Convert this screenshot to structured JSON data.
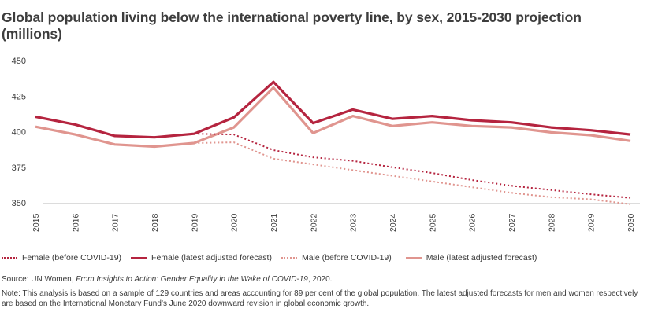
{
  "chart_data": {
    "type": "line",
    "title": "Global population living below the international poverty line, by sex, 2015-2030 projection (millions)",
    "xlabel": "",
    "ylabel": "",
    "ylim": [
      350,
      450
    ],
    "yticks": [
      "450",
      "425",
      "400",
      "375",
      "350"
    ],
    "ytick_values": [
      450,
      425,
      400,
      375,
      350
    ],
    "x": [
      "2015",
      "2016",
      "2017",
      "2018",
      "2019",
      "2020",
      "2021",
      "2022",
      "2023",
      "2024",
      "2025",
      "2026",
      "2027",
      "2028",
      "2029",
      "2030"
    ],
    "grid": false,
    "legend_position": "bottom",
    "series": [
      {
        "name": "Female (before COVID-19)",
        "style": "dotted",
        "color": "#b5243f",
        "values": [
          null,
          null,
          null,
          null,
          398.5,
          398,
          387,
          382,
          379.5,
          375,
          371,
          366,
          362,
          359,
          356,
          353.5
        ]
      },
      {
        "name": "Female (latest adjusted forecast)",
        "style": "solid",
        "color": "#b5243f",
        "values": [
          410.5,
          405,
          397,
          396,
          398.5,
          410,
          435,
          406,
          415.5,
          409,
          411,
          408,
          406.5,
          403,
          401,
          398
        ]
      },
      {
        "name": "Male (before COVID-19)",
        "style": "dotted",
        "color": "#e0958f",
        "values": [
          null,
          null,
          null,
          null,
          392,
          392.5,
          381,
          377,
          373,
          369,
          365,
          361,
          357,
          354,
          352.5,
          349
        ]
      },
      {
        "name": "Male (latest adjusted forecast)",
        "style": "solid",
        "color": "#e0958f",
        "values": [
          403.5,
          398,
          391,
          389.5,
          392,
          403,
          431,
          399,
          411,
          404,
          406.5,
          404,
          403,
          399.5,
          397.5,
          393.5
        ]
      }
    ]
  },
  "source": {
    "prefix": "Source: UN Women, ",
    "italic": "From Insights to Action: Gender Equality in the Wake of COVID-19",
    "suffix": ", 2020."
  },
  "note": "Note: This analysis is based on a sample of 129 countries and areas accounting for 89 per cent of the global population. The latest adjusted forecasts for men and women respectively are based on the International Monetary Fund’s June 2020 downward revision in global economic growth."
}
